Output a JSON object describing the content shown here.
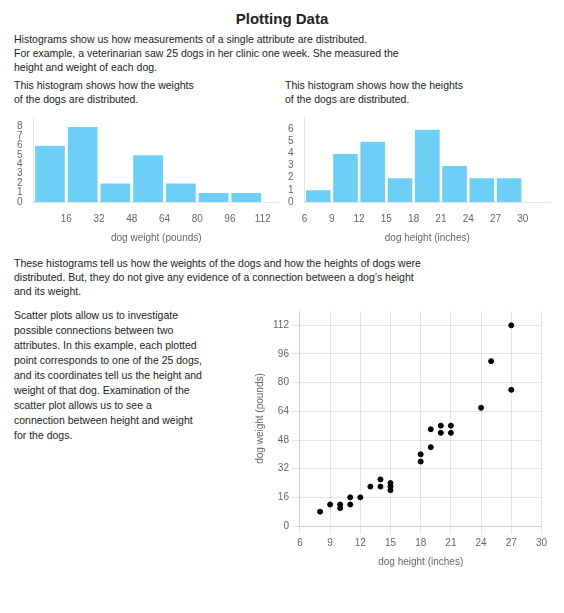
{
  "title": "Plotting Data",
  "annotations": [
    [
      "Histograms show us how measurements of a single attribute are distributed.",
      "For example, a veterinarian saw 25 dogs in her clinic one week. She measured the",
      "height and weight of each dog."
    ],
    [
      "These histograms tell us how the weights of the dogs and how the heights of dogs were",
      "distributed. But, they do not give any evidence of a connection between a dog’s height",
      "and its weight."
    ]
  ],
  "chart_data": [
    {
      "type": "histogram",
      "subtitle": [
        "This histogram shows how the weights",
        "of the dogs are distributed."
      ],
      "xlabel": "dog weight (pounds)",
      "bins": [
        0,
        16,
        32,
        48,
        64,
        80,
        96,
        112
      ],
      "values": [
        6,
        8,
        2,
        5,
        2,
        1,
        1
      ],
      "color": "#6dcff6",
      "xlim": [
        0,
        120
      ],
      "xticks": [
        16,
        32,
        48,
        64,
        80,
        96,
        112
      ],
      "ylim": [
        0,
        9
      ],
      "yticks": [
        0,
        1,
        2,
        3,
        4,
        5,
        6,
        7,
        8
      ],
      "grid": false
    },
    {
      "type": "histogram",
      "subtitle": [
        "This histogram shows how the heights",
        "of the dogs are distributed."
      ],
      "xlabel": "dog height (inches)",
      "bins": [
        6,
        9,
        12,
        15,
        18,
        21,
        24,
        27,
        30
      ],
      "values": [
        1,
        4,
        5,
        2,
        6,
        3,
        2,
        2
      ],
      "color": "#6dcff6",
      "xlim": [
        6,
        33
      ],
      "xticks": [
        6,
        9,
        12,
        15,
        18,
        21,
        24,
        27,
        30
      ],
      "ylim": [
        0,
        7
      ],
      "yticks": [
        0,
        1,
        2,
        3,
        4,
        5,
        6
      ],
      "grid": false
    },
    {
      "type": "scatter",
      "annotations": [
        "Scatter plots allow us to investigate",
        "possible connections between two",
        "attributes. In this example, each plotted",
        "point corresponds to one of the 25 dogs,",
        "and its coordinates tell us the height and",
        "weight of that dog. Examination of the",
        "scatter plot allows us to see a",
        "connection between height and weight",
        "for the dogs."
      ],
      "xlabel": "dog height (inches)",
      "ylabel": "dog weight (pounds)",
      "x": [
        8,
        9,
        10,
        10,
        11,
        11,
        12,
        13,
        14,
        14,
        15,
        15,
        15,
        18,
        18,
        19,
        19,
        20,
        20,
        21,
        21,
        24,
        25,
        27,
        27
      ],
      "values": [
        8,
        12,
        12,
        10,
        16,
        12,
        16,
        22,
        22,
        26,
        24,
        20,
        22,
        36,
        40,
        54,
        44,
        56,
        52,
        52,
        56,
        66,
        92,
        76,
        112
      ],
      "color": "#000000",
      "marker": "circle",
      "xlim": [
        6,
        30
      ],
      "xticks": [
        6,
        9,
        12,
        15,
        18,
        21,
        24,
        27,
        30
      ],
      "ylim": [
        0,
        120
      ],
      "yticks": [
        0,
        16,
        32,
        48,
        64,
        80,
        96,
        112
      ],
      "grid": true
    }
  ]
}
